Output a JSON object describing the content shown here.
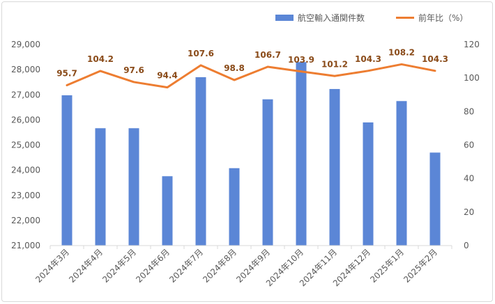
{
  "chart_data": {
    "type": "bar+line",
    "categories": [
      "2024年3月",
      "2024年4月",
      "2024年5月",
      "2024年6月",
      "2024年7月",
      "2024年8月",
      "2024年9月",
      "2024年10月",
      "2024年11月",
      "2024年12月",
      "2025年1月",
      "2025年2月"
    ],
    "series": [
      {
        "name": "航空輸入通関件数",
        "type": "bar",
        "axis": "left",
        "color": "#5b86d6",
        "values": [
          26980,
          25670,
          25670,
          23760,
          27700,
          24080,
          26820,
          28300,
          27230,
          25900,
          26750,
          24700
        ]
      },
      {
        "name": "前年比（%）",
        "type": "line",
        "axis": "right",
        "color": "#ed7d31",
        "values": [
          95.7,
          104.2,
          97.6,
          94.4,
          107.6,
          98.8,
          106.7,
          103.9,
          101.2,
          104.3,
          108.2,
          104.3
        ],
        "labels": [
          "95.7",
          "104.2",
          "97.6",
          "94.4",
          "107.6",
          "98.8",
          "106.7",
          "103.9",
          "101.2",
          "104.3",
          "108.2",
          "104.3"
        ]
      }
    ],
    "y_left": {
      "range": [
        21000,
        29000
      ],
      "ticks": [
        "21,000",
        "22,000",
        "23,000",
        "24,000",
        "25,000",
        "26,000",
        "27,000",
        "28,000",
        "29,000"
      ]
    },
    "y_right": {
      "range": [
        0,
        120
      ],
      "ticks": [
        "0",
        "20",
        "40",
        "60",
        "80",
        "100",
        "120"
      ]
    },
    "legend_position": "top-right",
    "grid": false,
    "label_color": "#8a4b19"
  }
}
